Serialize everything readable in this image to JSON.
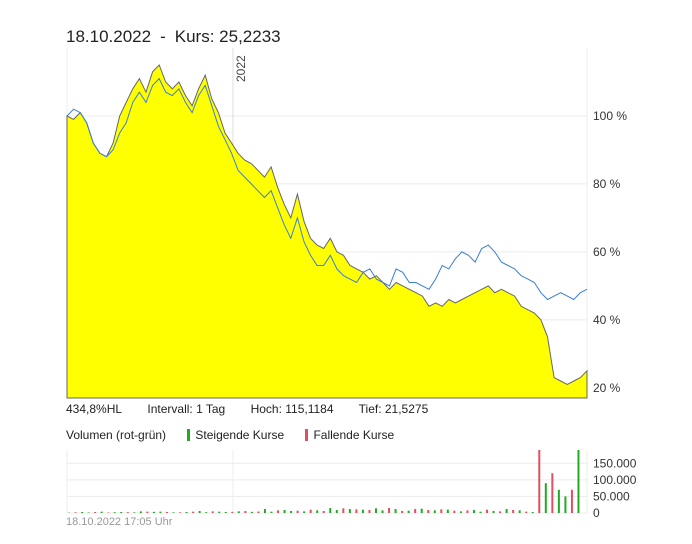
{
  "header": {
    "date": "18.10.2022",
    "separator": "-",
    "price_text": "Kurs: 25,2233"
  },
  "stats": {
    "range": "434,8%HL",
    "interval": "Intervall: 1 Tag",
    "high": "Hoch: 115,1184",
    "low": "Tief: 21,5275"
  },
  "volume_legend": {
    "title": "Volumen (rot-grün)",
    "up_label": "Steigende Kurse",
    "down_label": "Fallende Kurse",
    "up_color": "#22aa22",
    "down_color": "#e05060"
  },
  "footer": {
    "timestamp": "18.10.2022 17:05 Uhr"
  },
  "colors": {
    "area_fill": "#ffff00",
    "area_line": "#666666",
    "benchmark_line": "#3a7fd5",
    "grid": "#ececec"
  },
  "chart_data": [
    {
      "type": "area",
      "title": "",
      "year_marker": "2022",
      "ylabel": "",
      "ylim": [
        17,
        120
      ],
      "yticks": [
        20,
        40,
        60,
        80,
        100
      ],
      "ytick_labels": [
        "20 %",
        "40 %",
        "60 %",
        "80 %",
        "100 %"
      ],
      "grid": true,
      "series": [
        {
          "values": [
            100,
            99,
            101,
            98,
            92,
            89,
            88,
            92,
            100,
            104,
            108,
            111,
            107,
            113,
            115,
            110,
            108,
            110,
            106,
            103,
            108,
            112,
            105,
            101,
            95,
            92,
            89,
            87,
            86,
            84,
            82,
            85,
            79,
            74,
            70,
            77,
            69,
            64,
            62,
            61,
            64,
            60,
            59,
            56,
            55,
            54,
            52,
            53,
            51,
            49,
            51,
            50,
            49,
            48,
            47,
            44,
            45,
            44,
            46,
            45,
            46,
            47,
            48,
            49,
            50,
            48,
            49,
            48,
            47,
            44,
            43,
            42,
            40,
            35,
            23,
            22,
            21,
            22,
            23,
            25
          ]
        },
        {
          "values": [
            100,
            102,
            101,
            98,
            92,
            89,
            88,
            90,
            95,
            98,
            104,
            107,
            104,
            109,
            111,
            107,
            106,
            108,
            104,
            101,
            106,
            109,
            103,
            97,
            93,
            89,
            84,
            82,
            80,
            78,
            76,
            78,
            73,
            68,
            64,
            70,
            63,
            59,
            56,
            56,
            59,
            55,
            53,
            52,
            51,
            54,
            55,
            52,
            51,
            50,
            55,
            54,
            51,
            51,
            50,
            49,
            52,
            56,
            55,
            58,
            60,
            59,
            57,
            61,
            62,
            60,
            57,
            56,
            55,
            53,
            52,
            51,
            48,
            46,
            47,
            48,
            47,
            46,
            48,
            49
          ]
        }
      ]
    },
    {
      "type": "bar",
      "title": "Volumen (rot-grün)",
      "ylim": [
        0,
        190000
      ],
      "yticks": [
        0,
        50000,
        100000,
        150000
      ],
      "ytick_labels": [
        "0",
        "50.000",
        "100.000",
        "150.000"
      ],
      "series": [
        {
          "name": "Steigende Kurse",
          "values": [
            1000,
            0,
            3000,
            1500,
            0,
            4000,
            0,
            2500,
            3000,
            0,
            2000,
            5000,
            0,
            3500,
            4000,
            0,
            2000,
            0,
            3000,
            0,
            6000,
            2500,
            0,
            4000,
            3000,
            0,
            5000,
            0,
            3500,
            0,
            12000,
            4000,
            0,
            9000,
            6000,
            0,
            5000,
            0,
            8000,
            0,
            15000,
            9000,
            0,
            12000,
            0,
            10000,
            0,
            14000,
            8000,
            0,
            12000,
            0,
            7000,
            0,
            13000,
            0,
            8000,
            0,
            10000,
            0,
            5000,
            0,
            9000,
            4000,
            0,
            6000,
            0,
            12000,
            0,
            8000,
            0,
            3000,
            0,
            90000,
            0,
            70000,
            50000,
            0,
            190000,
            0
          ]
        },
        {
          "name": "Fallende Kurse",
          "values": [
            0,
            2000,
            0,
            0,
            3000,
            0,
            1500,
            0,
            0,
            2500,
            0,
            0,
            4000,
            0,
            0,
            3000,
            0,
            2000,
            0,
            4000,
            0,
            0,
            5000,
            0,
            0,
            3500,
            0,
            6000,
            0,
            4500,
            0,
            0,
            8000,
            0,
            0,
            7000,
            0,
            10000,
            0,
            6000,
            0,
            0,
            14000,
            0,
            11000,
            0,
            9000,
            0,
            0,
            15000,
            0,
            6000,
            0,
            12000,
            0,
            9000,
            0,
            11000,
            0,
            7000,
            0,
            8000,
            0,
            0,
            10000,
            0,
            5000,
            0,
            9000,
            0,
            4000,
            0,
            190000,
            0,
            120000,
            0,
            0,
            70000,
            0,
            0
          ]
        }
      ]
    }
  ]
}
